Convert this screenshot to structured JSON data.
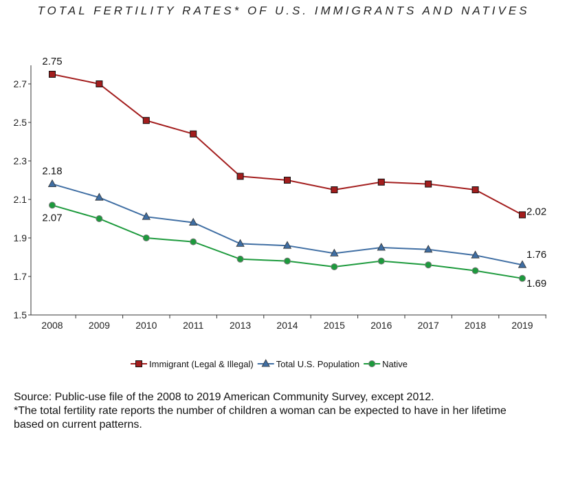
{
  "chart_data": {
    "type": "line",
    "title": "TOTAL FERTILITY RATES* OF U.S. IMMIGRANTS AND NATIVES",
    "categories": [
      "2008",
      "2009",
      "2010",
      "2011",
      "2013",
      "2014",
      "2015",
      "2016",
      "2017",
      "2018",
      "2019"
    ],
    "ylim": [
      1.5,
      2.8
    ],
    "yticks": [
      "1.5",
      "1.7",
      "1.9",
      "2.1",
      "2.3",
      "2.5",
      "2.7"
    ],
    "grid": false,
    "legend_placement": "bottom",
    "series": [
      {
        "name": "Immigrant (Legal & Illegal)",
        "color": "#a31d1d",
        "marker": "square",
        "values": [
          2.75,
          2.7,
          2.51,
          2.44,
          2.22,
          2.2,
          2.15,
          2.19,
          2.18,
          2.15,
          2.02
        ],
        "labels": {
          "first": "2.75",
          "last": "2.02"
        }
      },
      {
        "name": "Total U.S. Population",
        "color": "#3f6ea3",
        "marker": "triangle",
        "values": [
          2.18,
          2.11,
          2.01,
          1.98,
          1.87,
          1.86,
          1.82,
          1.85,
          1.84,
          1.81,
          1.76
        ],
        "labels": {
          "first": "2.18",
          "last": "1.76"
        }
      },
      {
        "name": "Native",
        "color": "#1c9a3c",
        "marker": "circle",
        "values": [
          2.07,
          2.0,
          1.9,
          1.88,
          1.79,
          1.78,
          1.75,
          1.78,
          1.76,
          1.73,
          1.69
        ],
        "labels": {
          "first": "2.07",
          "last": "1.69"
        }
      }
    ]
  },
  "notes": {
    "source": "Source: Public-use file of the 2008 to 2019 American Community Survey, except 2012.",
    "footnote": "*The total fertility rate reports the number of children a woman can be expected to have in her lifetime based on current patterns."
  }
}
